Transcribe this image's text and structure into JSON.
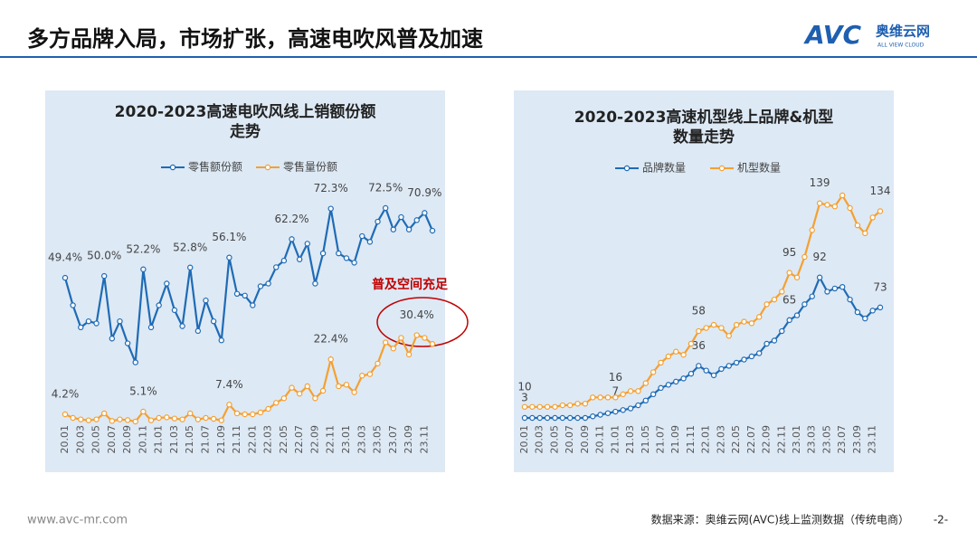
{
  "header": {
    "title": "多方品牌入局，市场扩张，高速电吹风普及加速",
    "logo": {
      "mark": "AVC",
      "name": "奥维云网",
      "tagline": "ALL VIEW CLOUD"
    }
  },
  "chart_data": [
    {
      "type": "line",
      "title": "2020-2023高速电吹风线上销额份额走势",
      "categories": [
        "20.01",
        null,
        "20.03",
        null,
        "20.05",
        null,
        "20.07",
        null,
        "20.09",
        null,
        "20.11",
        null,
        "21.01",
        null,
        "21.03",
        null,
        "21.05",
        null,
        "21.07",
        null,
        "21.09",
        null,
        "21.11",
        null,
        "22.01",
        null,
        "22.03",
        null,
        "22.05",
        null,
        "22.07",
        null,
        "22.09",
        null,
        "22.11",
        null,
        "23.01",
        null,
        "23.03",
        null,
        "23.05",
        null,
        "23.07",
        null,
        "23.09",
        null,
        "23.11",
        null
      ],
      "series": [
        {
          "name": "零售额份额",
          "color": "#1f6bb5",
          "values": [
            49.4,
            40.3,
            33,
            35,
            34.3,
            50.0,
            29.3,
            35,
            27.7,
            21.4,
            52.2,
            33,
            40.3,
            47.5,
            38.7,
            33.4,
            52.8,
            31.8,
            41.9,
            35,
            28.7,
            56.1,
            44.1,
            43.5,
            40.3,
            46.6,
            47.5,
            52.9,
            55.1,
            62.2,
            55.5,
            60.7,
            47.5,
            57.5,
            72.3,
            57.5,
            55.9,
            54.4,
            63.2,
            61.3,
            68,
            72.5,
            65.4,
            69.5,
            65.4,
            68.5,
            70.9,
            65
          ],
          "value_labels": [
            "49.4%",
            null,
            null,
            null,
            null,
            "50.0%",
            null,
            null,
            null,
            null,
            "52.2%",
            null,
            null,
            null,
            null,
            null,
            "52.8%",
            null,
            null,
            null,
            null,
            "56.1%",
            null,
            null,
            null,
            null,
            null,
            null,
            null,
            "62.2%",
            null,
            null,
            null,
            null,
            "72.3%",
            null,
            null,
            null,
            null,
            null,
            null,
            "72.5%",
            null,
            null,
            null,
            null,
            "70.9%",
            null
          ]
        },
        {
          "name": "零售量份额",
          "color": "#f5a030",
          "values": [
            4.2,
            3.0,
            2.5,
            2.2,
            2.5,
            4.5,
            2.0,
            2.5,
            2.3,
            1.8,
            5.1,
            2.2,
            3.0,
            3.2,
            2.8,
            2.5,
            4.5,
            2.5,
            3.0,
            2.7,
            2.2,
            7.4,
            4.5,
            4.2,
            4.2,
            4.8,
            6.0,
            8.0,
            9.5,
            13.0,
            11.0,
            13.5,
            9.5,
            12.0,
            22.4,
            13.5,
            14.0,
            11.5,
            17.0,
            17.5,
            21.0,
            28.0,
            26.0,
            29.5,
            24.0,
            30.4,
            29.5,
            27.5
          ],
          "value_labels": [
            "4.2%",
            null,
            null,
            null,
            null,
            null,
            null,
            null,
            null,
            null,
            "5.1%",
            null,
            null,
            null,
            null,
            null,
            null,
            null,
            null,
            null,
            null,
            "7.4%",
            null,
            null,
            null,
            null,
            null,
            null,
            null,
            null,
            null,
            null,
            null,
            null,
            "22.4%",
            null,
            null,
            null,
            null,
            null,
            null,
            null,
            null,
            null,
            null,
            "30.4%",
            null,
            null
          ]
        }
      ],
      "annotations": [
        "普及空间充足"
      ]
    },
    {
      "type": "line",
      "title": "2020-2023高速机型线上品牌&机型数量走势",
      "categories": [
        "20.01",
        null,
        "20.03",
        null,
        "20.05",
        null,
        "20.07",
        null,
        "20.09",
        null,
        "20.11",
        null,
        "21.01",
        null,
        "21.03",
        null,
        "21.05",
        null,
        "21.07",
        null,
        "21.09",
        null,
        "21.11",
        null,
        "22.01",
        null,
        "22.03",
        null,
        "22.05",
        null,
        "22.07",
        null,
        "22.09",
        null,
        "22.11",
        null,
        "23.01",
        null,
        "23.03",
        null,
        "23.05",
        null,
        "23.07",
        null,
        "23.09",
        null,
        "23.11",
        null
      ],
      "series": [
        {
          "name": "品牌数量",
          "color": "#1f6bb5",
          "values": [
            3,
            3,
            3,
            3,
            3,
            3,
            3,
            3,
            3,
            4,
            5,
            6,
            7,
            8,
            9,
            11,
            14,
            18,
            22,
            24,
            26,
            28,
            31,
            36,
            33,
            30,
            34,
            36,
            38,
            40,
            42,
            44,
            50,
            52,
            58,
            65,
            68,
            75,
            80,
            92,
            83,
            85,
            86,
            78,
            70,
            66,
            71,
            73
          ],
          "value_labels": [
            "3",
            null,
            null,
            null,
            null,
            null,
            null,
            null,
            null,
            null,
            null,
            null,
            "7",
            null,
            null,
            null,
            null,
            null,
            null,
            null,
            null,
            null,
            null,
            "36",
            null,
            null,
            null,
            null,
            null,
            null,
            null,
            null,
            null,
            null,
            null,
            "65",
            null,
            null,
            null,
            "92",
            null,
            null,
            null,
            null,
            null,
            null,
            null,
            "73"
          ]
        },
        {
          "name": "机型数量",
          "color": "#f5a030",
          "values": [
            10,
            10,
            10,
            10,
            10,
            11,
            11,
            12,
            12,
            16,
            16,
            16,
            16,
            18,
            20,
            20,
            25,
            32,
            38,
            42,
            45,
            43,
            50,
            58,
            60,
            62,
            60,
            55,
            62,
            64,
            63,
            67,
            75,
            78,
            83,
            95,
            92,
            105,
            122,
            139,
            138,
            137,
            144,
            136,
            125,
            120,
            130,
            134
          ],
          "value_labels": [
            "10",
            null,
            null,
            null,
            null,
            null,
            null,
            null,
            null,
            null,
            null,
            null,
            "16",
            null,
            null,
            null,
            null,
            null,
            null,
            null,
            null,
            null,
            null,
            "58",
            null,
            null,
            null,
            null,
            null,
            null,
            null,
            null,
            null,
            null,
            null,
            "95",
            null,
            null,
            null,
            "139",
            null,
            null,
            null,
            null,
            null,
            null,
            null,
            "134"
          ]
        }
      ]
    }
  ],
  "footer": {
    "website": "www.avc-mr.com",
    "source": "数据来源：奥维云网(AVC)线上监测数据（传统电商）",
    "page": "-2-"
  }
}
